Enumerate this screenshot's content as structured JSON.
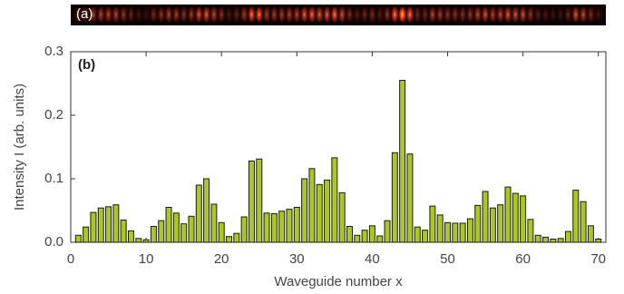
{
  "chart_data": {
    "type": "bar",
    "panel_labels": [
      "(a)",
      "(b)"
    ],
    "xlabel": "Waveguide number x",
    "ylabel": "Intensity I (arb. units)",
    "x": [
      1,
      2,
      3,
      4,
      5,
      6,
      7,
      8,
      9,
      10,
      11,
      12,
      13,
      14,
      15,
      16,
      17,
      18,
      19,
      20,
      21,
      22,
      23,
      24,
      25,
      26,
      27,
      28,
      29,
      30,
      31,
      32,
      33,
      34,
      35,
      36,
      37,
      38,
      39,
      40,
      41,
      42,
      43,
      44,
      45,
      46,
      47,
      48,
      49,
      50,
      51,
      52,
      53,
      54,
      55,
      56,
      57,
      58,
      59,
      60,
      61,
      62,
      63,
      64,
      65,
      66,
      67,
      68,
      69,
      70
    ],
    "values": [
      0.011,
      0.024,
      0.047,
      0.054,
      0.056,
      0.059,
      0.035,
      0.018,
      0.006,
      0.004,
      0.025,
      0.034,
      0.055,
      0.046,
      0.029,
      0.041,
      0.09,
      0.1,
      0.06,
      0.031,
      0.009,
      0.014,
      0.04,
      0.128,
      0.131,
      0.046,
      0.045,
      0.049,
      0.052,
      0.055,
      0.1,
      0.116,
      0.091,
      0.098,
      0.133,
      0.078,
      0.025,
      0.011,
      0.019,
      0.026,
      0.01,
      0.034,
      0.141,
      0.255,
      0.139,
      0.024,
      0.019,
      0.057,
      0.043,
      0.031,
      0.03,
      0.03,
      0.037,
      0.058,
      0.08,
      0.054,
      0.059,
      0.087,
      0.077,
      0.073,
      0.036,
      0.011,
      0.008,
      0.005,
      0.006,
      0.017,
      0.082,
      0.064,
      0.026,
      0.005
    ],
    "color": "#a9c822",
    "xlim": [
      0,
      71
    ],
    "xticks": [
      0,
      10,
      20,
      30,
      40,
      50,
      60,
      70
    ],
    "ylim": [
      0,
      0.3
    ],
    "yticks": [
      {
        "value": 0,
        "label": "0.0"
      },
      0.1,
      0.2,
      0.3
    ]
  }
}
